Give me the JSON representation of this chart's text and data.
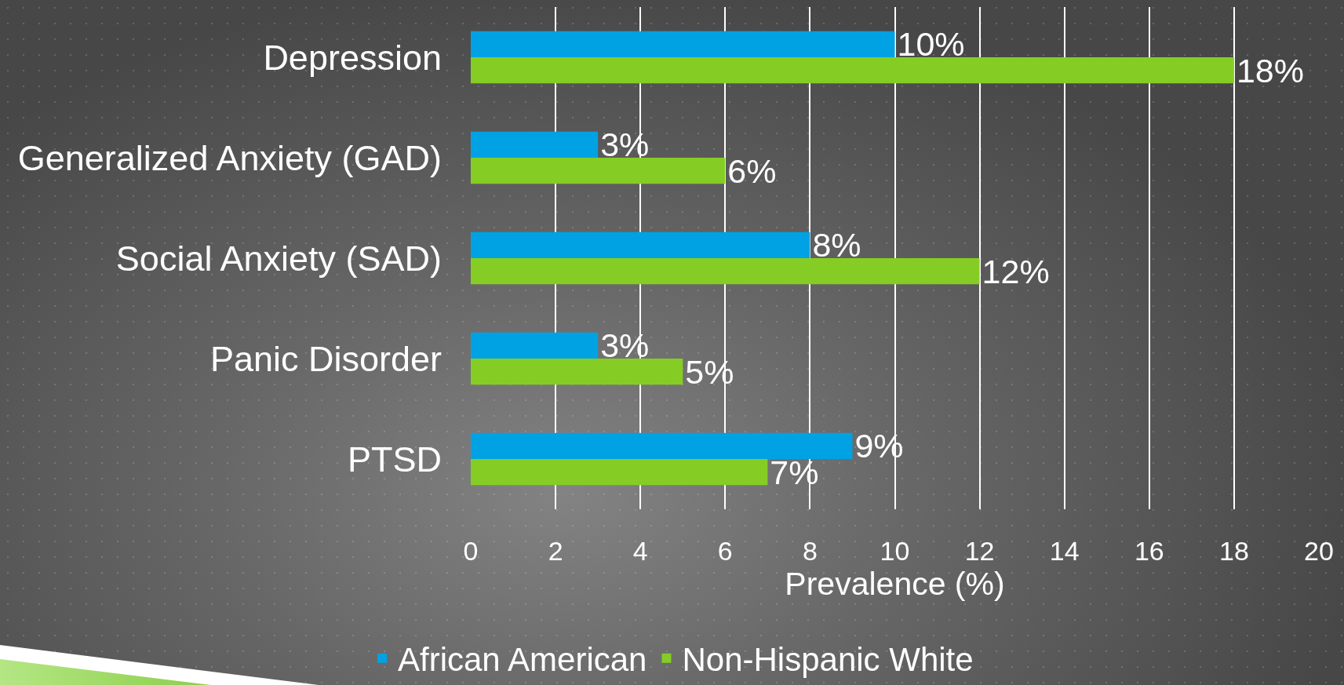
{
  "chart_data": {
    "type": "bar",
    "orientation": "horizontal",
    "categories": [
      "Depression",
      "Generalized Anxiety (GAD)",
      "Social Anxiety (SAD)",
      "Panic Disorder",
      "PTSD"
    ],
    "series": [
      {
        "name": "African American",
        "color": "#00a2e3",
        "values": [
          10,
          3,
          8,
          3,
          9
        ],
        "value_labels": [
          "10%",
          "3%",
          "8%",
          "3%",
          "9%"
        ]
      },
      {
        "name": "Non-Hispanic White",
        "color": "#85cd24",
        "values": [
          18,
          6,
          12,
          5,
          7
        ],
        "value_labels": [
          "18%",
          "6%",
          "12%",
          "5%",
          "7%"
        ]
      }
    ],
    "xlabel": "Prevalence (%)",
    "xlim": [
      0,
      20
    ],
    "xticks": [
      0,
      2,
      4,
      6,
      8,
      10,
      12,
      14,
      16,
      18,
      20
    ],
    "grid": "x",
    "legend": "bottom"
  }
}
